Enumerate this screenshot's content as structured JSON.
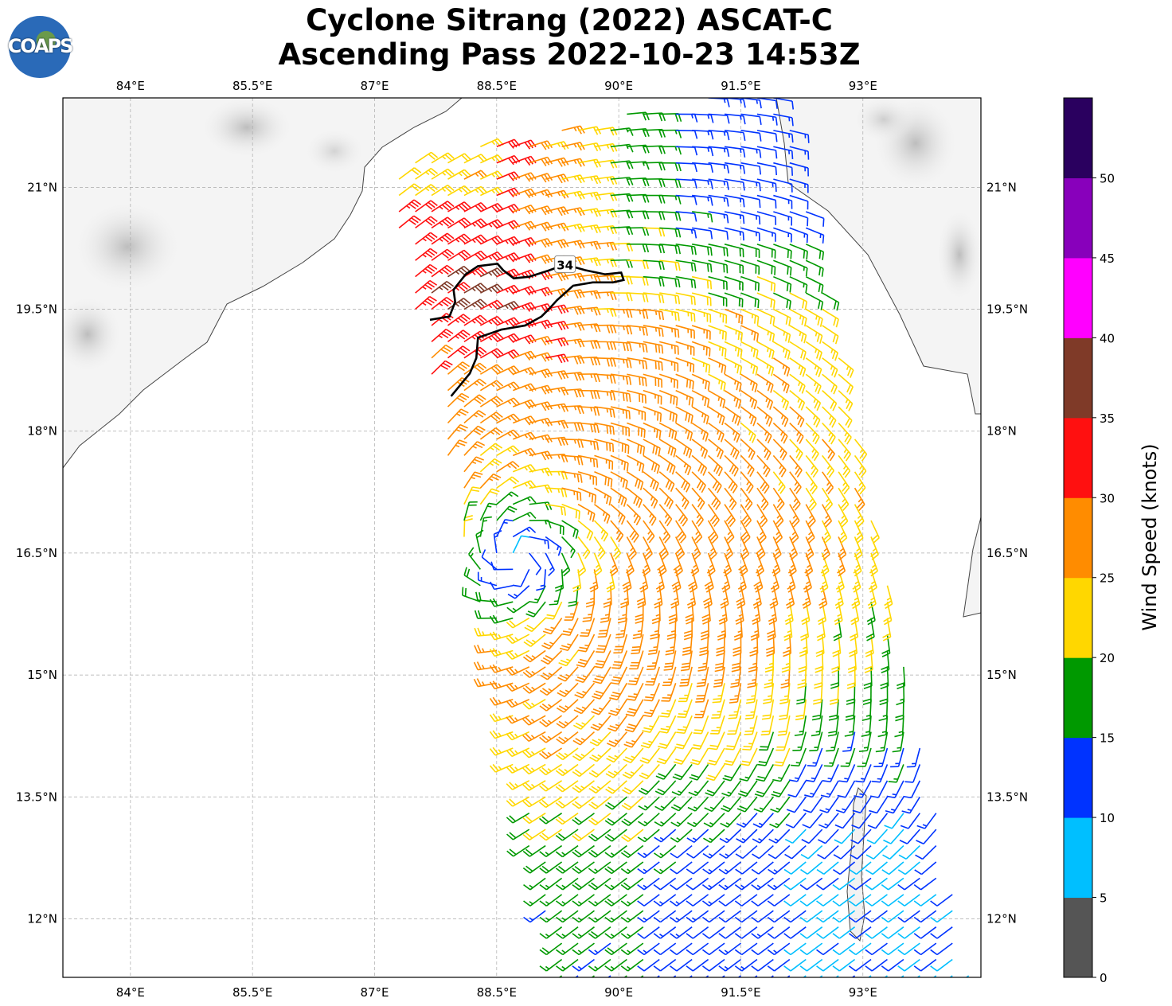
{
  "title": {
    "line1": "Cyclone Sitrang (2022) ASCAT-C",
    "line2": "Ascending Pass 2022-10-23 14:53Z"
  },
  "logo": {
    "text": "COAPS"
  },
  "chart_data": {
    "type": "map-wind-barbs",
    "lon_range": [
      83.17,
      94.45
    ],
    "lat_range": [
      11.28,
      22.1
    ],
    "lon_ticks": [
      84,
      85.5,
      87,
      88.5,
      90,
      91.5,
      93
    ],
    "lon_tick_labels": [
      "84°E",
      "85.5°E",
      "87°E",
      "88.5°E",
      "90°E",
      "91.5°E",
      "93°E"
    ],
    "lat_ticks": [
      21,
      19.5,
      18,
      16.5,
      15,
      13.5,
      12
    ],
    "lat_tick_labels": [
      "21°N",
      "19.5°N",
      "18°N",
      "16.5°N",
      "15°N",
      "13.5°N",
      "12°N"
    ],
    "grid": true,
    "cyclone_center": {
      "lon": 88.75,
      "lat": 16.45
    },
    "swath_polygon": [
      [
        87.12,
        21.25
      ],
      [
        89.24,
        11.28
      ],
      [
        94.33,
        11.28
      ],
      [
        92.03,
        22.1
      ],
      [
        91.0,
        22.1
      ]
    ],
    "contour_34kt": {
      "label": "34",
      "label_position": {
        "lon": 89.34,
        "lat": 20.05
      },
      "points": [
        [
          87.68,
          19.37
        ],
        [
          87.92,
          19.41
        ],
        [
          87.99,
          19.59
        ],
        [
          87.97,
          19.74
        ],
        [
          88.12,
          19.93
        ],
        [
          88.27,
          20.03
        ],
        [
          88.51,
          20.06
        ],
        [
          88.58,
          19.98
        ],
        [
          88.71,
          19.88
        ],
        [
          88.9,
          19.9
        ],
        [
          89.15,
          19.98
        ],
        [
          89.34,
          20.05
        ],
        [
          89.59,
          19.98
        ],
        [
          89.83,
          19.93
        ],
        [
          90.03,
          19.95
        ],
        [
          90.06,
          19.86
        ],
        [
          89.93,
          19.83
        ],
        [
          89.68,
          19.83
        ],
        [
          89.44,
          19.79
        ],
        [
          89.24,
          19.61
        ],
        [
          89.15,
          19.51
        ],
        [
          89.05,
          19.41
        ],
        [
          88.85,
          19.3
        ],
        [
          88.56,
          19.25
        ],
        [
          88.27,
          19.15
        ],
        [
          88.25,
          18.9
        ],
        [
          88.17,
          18.71
        ],
        [
          87.94,
          18.43
        ]
      ]
    },
    "colorbar": {
      "label": "Wind Speed (knots)",
      "range": [
        0,
        55
      ],
      "ticks": [
        0,
        5,
        10,
        15,
        20,
        25,
        30,
        35,
        40,
        45,
        50
      ],
      "tick_labels": [
        "0",
        "5",
        "10",
        "15",
        "20",
        "25",
        "30",
        "35",
        "40",
        "45",
        "50"
      ],
      "colors": [
        "#555555",
        "#00bfff",
        "#0033ff",
        "#009900",
        "#ffd700",
        "#ff8c00",
        "#ff1010",
        "#7f3a28",
        "#ff00ff",
        "#8800bb",
        "#2a005f"
      ]
    }
  }
}
